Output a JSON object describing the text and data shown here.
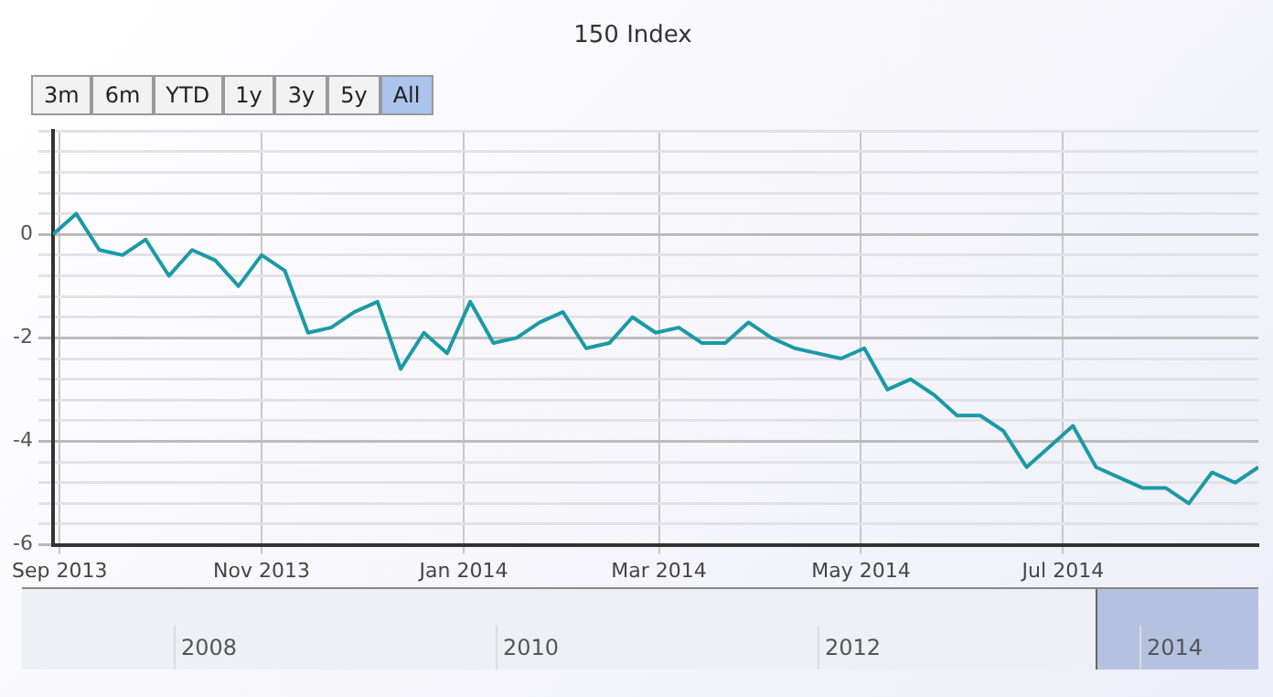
{
  "chart_data": {
    "type": "line",
    "title": "150 Index",
    "x": [
      "2013-08-30",
      "2013-09-06",
      "2013-09-13",
      "2013-09-20",
      "2013-09-27",
      "2013-10-04",
      "2013-10-11",
      "2013-10-18",
      "2013-10-25",
      "2013-11-01",
      "2013-11-08",
      "2013-11-15",
      "2013-11-22",
      "2013-11-29",
      "2013-12-06",
      "2013-12-13",
      "2013-12-20",
      "2013-12-27",
      "2014-01-03",
      "2014-01-10",
      "2014-01-17",
      "2014-01-24",
      "2014-01-31",
      "2014-02-07",
      "2014-02-14",
      "2014-02-21",
      "2014-02-28",
      "2014-03-07",
      "2014-03-14",
      "2014-03-21",
      "2014-03-28",
      "2014-04-04",
      "2014-04-11",
      "2014-04-18",
      "2014-04-25",
      "2014-05-02",
      "2014-05-09",
      "2014-05-16",
      "2014-05-23",
      "2014-05-30",
      "2014-06-06",
      "2014-06-13",
      "2014-06-20",
      "2014-06-27",
      "2014-07-04",
      "2014-07-11",
      "2014-07-18",
      "2014-07-25",
      "2014-08-01",
      "2014-08-08",
      "2014-08-15",
      "2014-08-22",
      "2014-08-29"
    ],
    "series": [
      {
        "color": "#1a9aa6",
        "values": [
          0,
          0.4,
          -0.3,
          -0.4,
          -0.1,
          -0.8,
          -0.3,
          -0.5,
          -1.0,
          -0.4,
          -0.7,
          -1.9,
          -1.8,
          -1.5,
          -1.3,
          -2.6,
          -1.9,
          -2.3,
          -1.3,
          -2.1,
          -2.0,
          -1.7,
          -1.5,
          -2.2,
          -2.1,
          -1.6,
          -1.9,
          -1.8,
          -2.1,
          -2.1,
          -1.7,
          -2.0,
          -2.2,
          -2.3,
          -2.4,
          -2.2,
          -3.0,
          -2.8,
          -3.1,
          -3.5,
          -3.5,
          -3.8,
          -4.5,
          -4.1,
          -3.7,
          -4.5,
          -4.7,
          -4.9,
          -4.9,
          -5.2,
          -4.6,
          -4.8,
          -4.5
        ]
      }
    ],
    "xlim": [
      "2013-08-30",
      "2014-08-29"
    ],
    "xticks": [
      {
        "value": "2013-09-01",
        "label": "Sep 2013"
      },
      {
        "value": "2013-11-01",
        "label": "Nov 2013"
      },
      {
        "value": "2014-01-01",
        "label": "Jan 2014"
      },
      {
        "value": "2014-03-01",
        "label": "Mar 2014"
      },
      {
        "value": "2014-05-01",
        "label": "May 2014"
      },
      {
        "value": "2014-07-01",
        "label": "Jul 2014"
      }
    ],
    "ylim": [
      -6,
      2
    ],
    "yticks": [
      -6,
      {
        "value": -5.6,
        "label": null
      },
      {
        "value": -5.2,
        "label": null
      },
      {
        "value": -4.8,
        "label": null
      },
      {
        "value": -4.4,
        "label": null
      },
      -4,
      {
        "value": -3.6,
        "label": null
      },
      {
        "value": -3.2,
        "label": null
      },
      {
        "value": -2.8,
        "label": null
      },
      {
        "value": -2.4,
        "label": null
      },
      -2,
      {
        "value": -1.6,
        "label": null
      },
      {
        "value": -1.2,
        "label": null
      },
      {
        "value": -0.8,
        "label": null
      },
      {
        "value": -0.4,
        "label": null
      },
      0,
      {
        "value": 0.4,
        "label": null
      },
      {
        "value": 0.8,
        "label": null
      },
      {
        "value": 1.2,
        "label": null
      },
      {
        "value": 1.6,
        "label": null
      },
      {
        "value": 2,
        "label": null
      }
    ],
    "grid": true,
    "legend": false,
    "marker": "none",
    "line_style": "solid",
    "annotations": [
      "3m",
      "6m",
      "YTD",
      "1y",
      "3y",
      "5y",
      "All",
      "2008",
      "2010",
      "2012",
      "2014"
    ]
  }
}
